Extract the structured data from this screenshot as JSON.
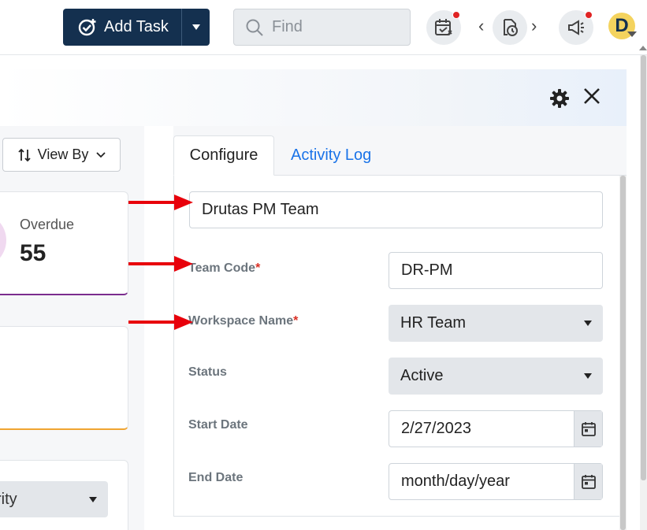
{
  "topbar": {
    "add_task_label": "Add Task",
    "find_placeholder": "Find"
  },
  "left": {
    "view_by_label": "View By",
    "overdue_label": "Overdue",
    "overdue_value": "55",
    "priority_select_value": "rity"
  },
  "tabs": [
    {
      "label": "Configure",
      "active": true
    },
    {
      "label": "Activity Log",
      "active": false
    }
  ],
  "form": {
    "team_name_value": "Drutas PM Team",
    "team_code_label": "Team Code",
    "team_code_value": "DR-PM",
    "workspace_label": "Workspace Name",
    "workspace_value": "HR Team",
    "status_label": "Status",
    "status_value": "Active",
    "start_date_label": "Start Date",
    "start_date_value": "2/27/2023",
    "end_date_label": "End Date",
    "end_date_placeholder": "month/day/year",
    "required_mark": "*"
  },
  "colors": {
    "primary_dark": "#14304f",
    "accent_blue": "#1a73e8",
    "required_red": "#d93025",
    "annotation_arrow": "#e8000b"
  },
  "avatar_letter": "D"
}
